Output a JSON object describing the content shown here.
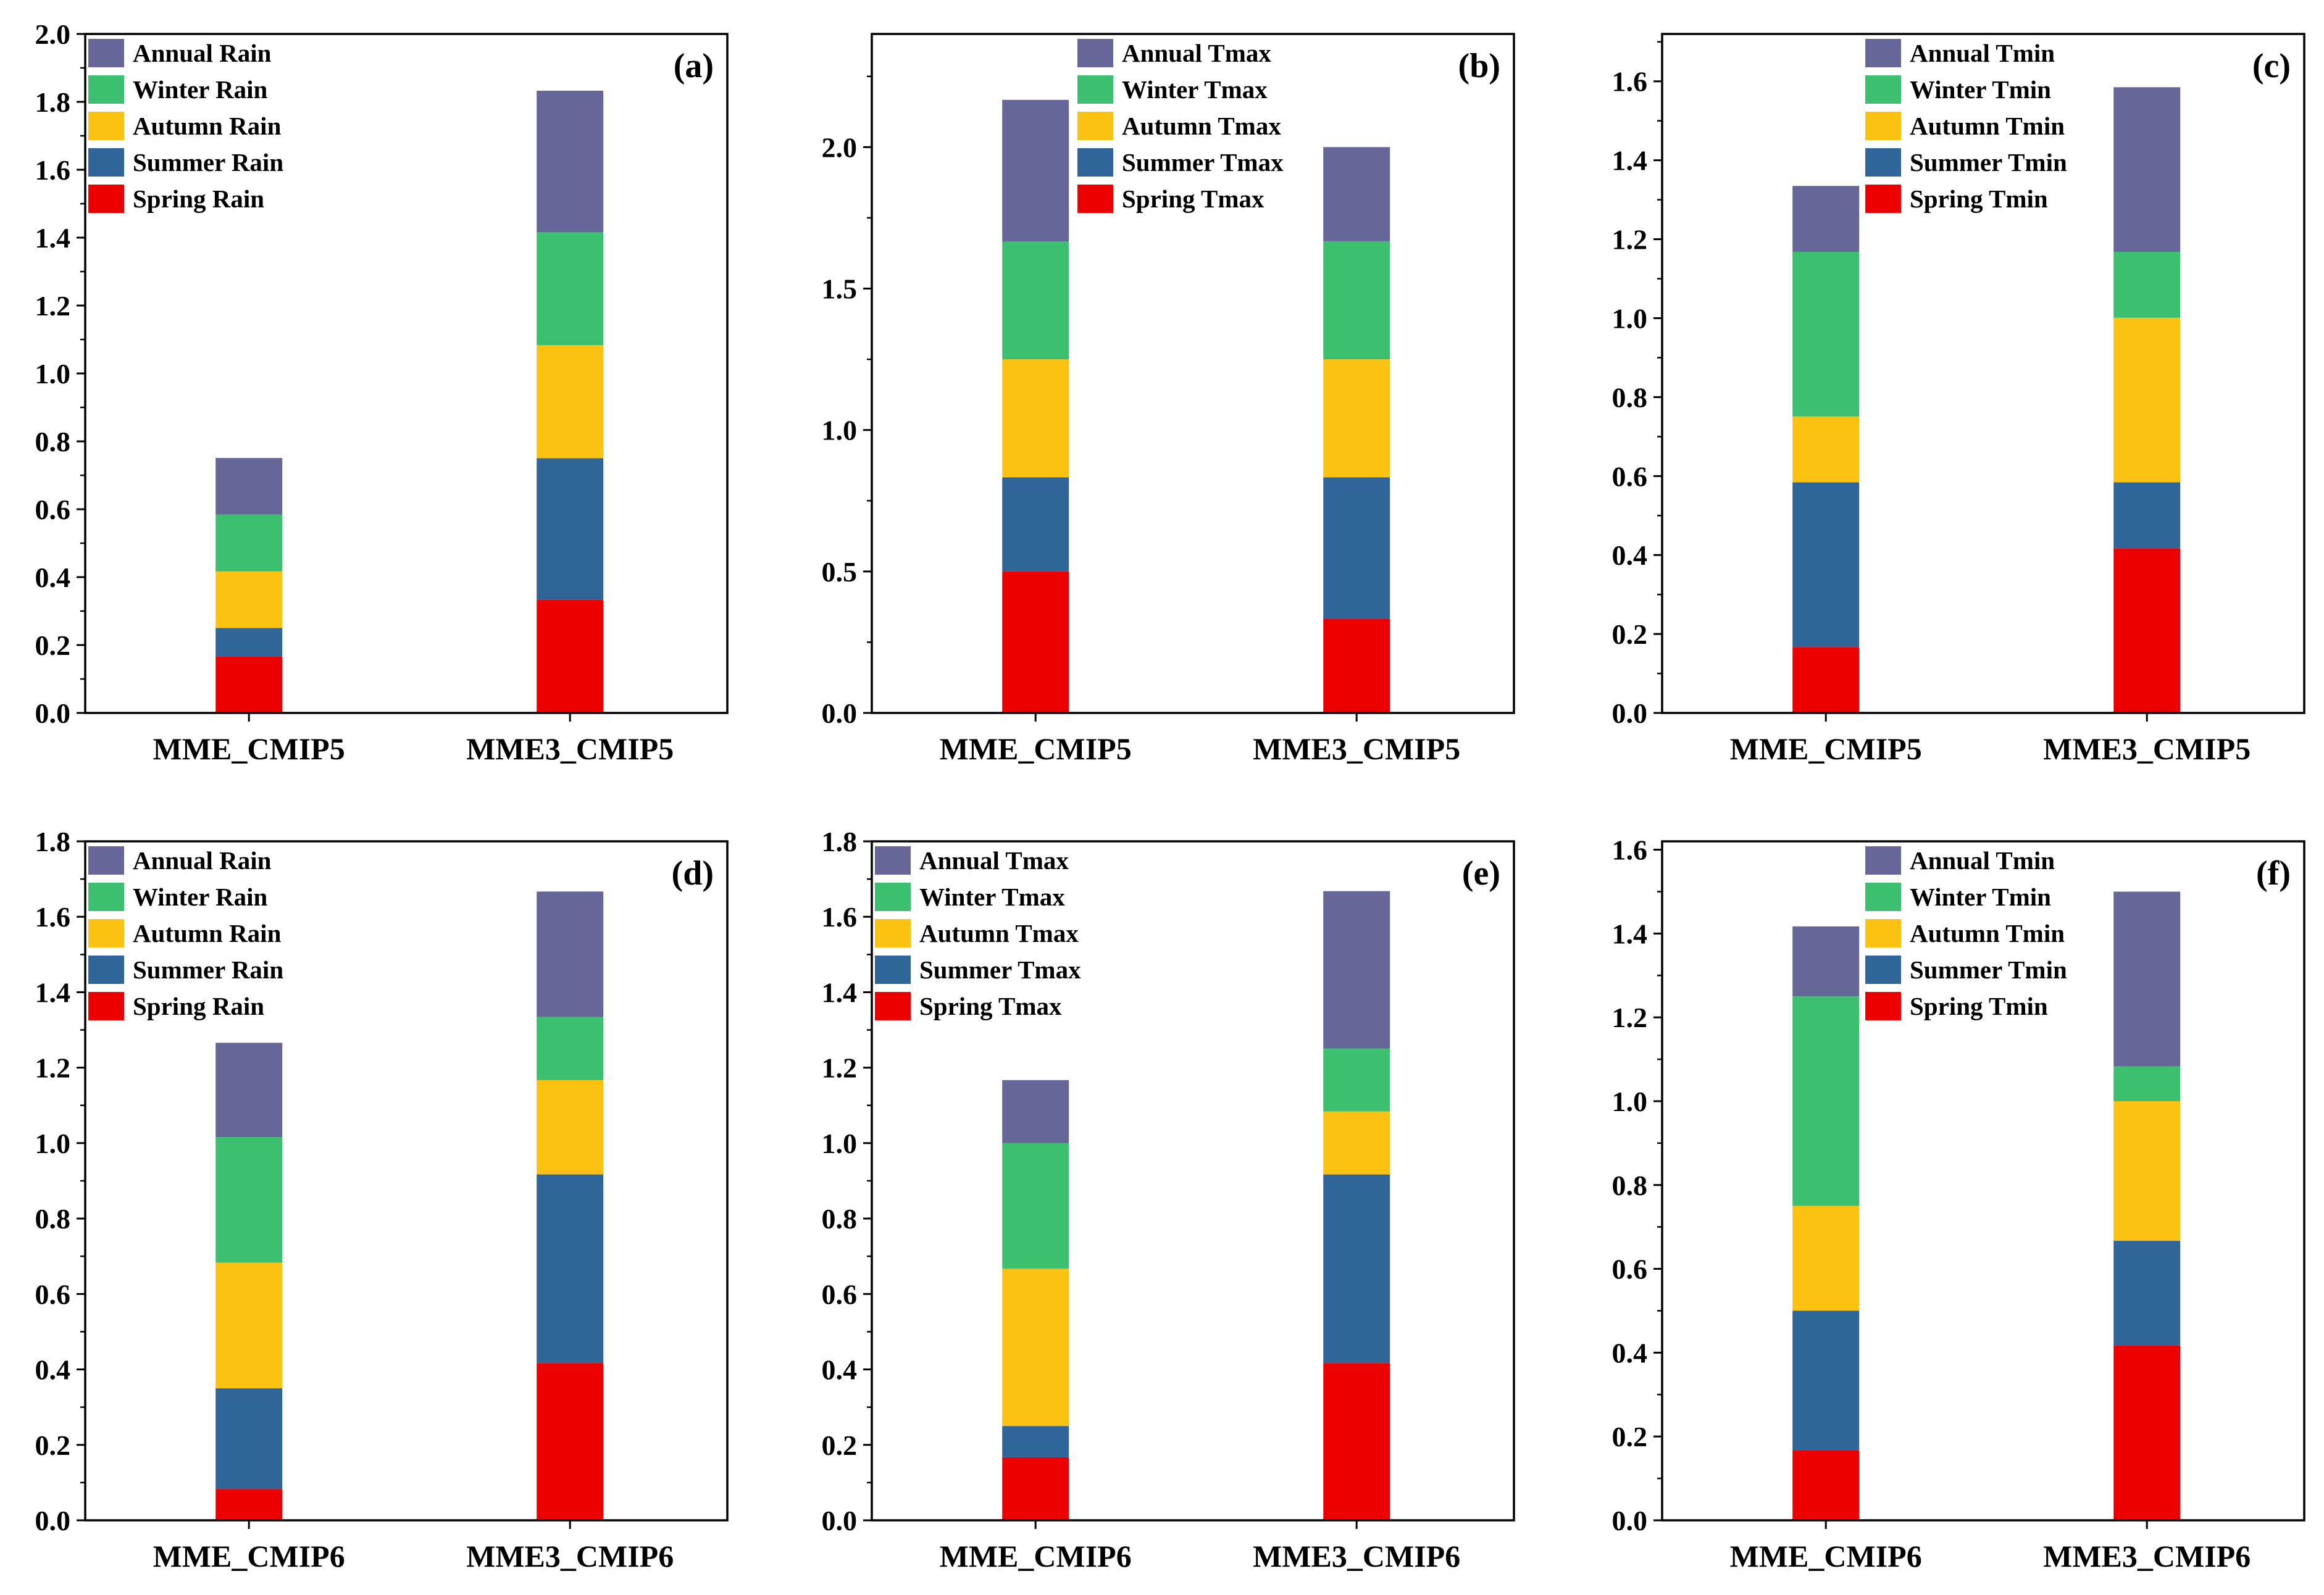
{
  "colors": {
    "Spring": "#ed0000",
    "Summer": "#2f6599",
    "Autumn": "#fbc211",
    "Winter": "#3cc070",
    "Annual": "#666699"
  },
  "chart_data": [
    {
      "type": "bar",
      "stacked": true,
      "panel": "(a)",
      "categories": [
        "MME_CMIP5",
        "MME3_CMIP5"
      ],
      "ylim": [
        0,
        2.0
      ],
      "yticks": [
        "0.0",
        "0.2",
        "0.4",
        "0.6",
        "0.8",
        "1.0",
        "1.2",
        "1.4",
        "1.6",
        "1.8",
        "2.0"
      ],
      "legend_position": "top-left",
      "series": [
        {
          "name": "Spring Rain",
          "season": "Spring",
          "values": [
            0.167,
            0.333
          ]
        },
        {
          "name": "Summer Rain",
          "season": "Summer",
          "values": [
            0.083,
            0.417
          ]
        },
        {
          "name": "Autumn Rain",
          "season": "Autumn",
          "values": [
            0.167,
            0.333
          ]
        },
        {
          "name": "Winter Rain",
          "season": "Winter",
          "values": [
            0.167,
            0.333
          ]
        },
        {
          "name": "Annual Rain",
          "season": "Annual",
          "values": [
            0.167,
            0.417
          ]
        }
      ]
    },
    {
      "type": "bar",
      "stacked": true,
      "panel": "(b)",
      "categories": [
        "MME_CMIP5",
        "MME3_CMIP5"
      ],
      "ylim": [
        0,
        2.4
      ],
      "yticks": [
        "0.0",
        "0.5",
        "1.0",
        "1.5",
        "2.0"
      ],
      "legend_position": "top-center",
      "series": [
        {
          "name": "Spring Tmax",
          "season": "Spring",
          "values": [
            0.5,
            0.333
          ]
        },
        {
          "name": "Summer Tmax",
          "season": "Summer",
          "values": [
            0.333,
            0.5
          ]
        },
        {
          "name": "Autumn Tmax",
          "season": "Autumn",
          "values": [
            0.417,
            0.417
          ]
        },
        {
          "name": "Winter Tmax",
          "season": "Winter",
          "values": [
            0.417,
            0.417
          ]
        },
        {
          "name": "Annual Tmax",
          "season": "Annual",
          "values": [
            0.5,
            0.333
          ]
        }
      ]
    },
    {
      "type": "bar",
      "stacked": true,
      "panel": "(c)",
      "categories": [
        "MME_CMIP5",
        "MME3_CMIP5"
      ],
      "ylim": [
        0,
        1.72
      ],
      "yticks": [
        "0.0",
        "0.2",
        "0.4",
        "0.6",
        "0.8",
        "1.0",
        "1.2",
        "1.4",
        "1.6"
      ],
      "legend_position": "top-center",
      "series": [
        {
          "name": "Spring Tmin",
          "season": "Spring",
          "values": [
            0.167,
            0.417
          ]
        },
        {
          "name": "Summer Tmin",
          "season": "Summer",
          "values": [
            0.417,
            0.167
          ]
        },
        {
          "name": "Autumn Tmin",
          "season": "Autumn",
          "values": [
            0.167,
            0.417
          ]
        },
        {
          "name": "Winter Tmin",
          "season": "Winter",
          "values": [
            0.417,
            0.167
          ]
        },
        {
          "name": "Annual Tmin",
          "season": "Annual",
          "values": [
            0.167,
            0.417
          ]
        }
      ]
    },
    {
      "type": "bar",
      "stacked": true,
      "panel": "(d)",
      "categories": [
        "MME_CMIP6",
        "MME3_CMIP6"
      ],
      "ylim": [
        0,
        1.8
      ],
      "yticks": [
        "0.0",
        "0.2",
        "0.4",
        "0.6",
        "0.8",
        "1.0",
        "1.2",
        "1.4",
        "1.6",
        "1.8"
      ],
      "legend_position": "top-left",
      "series": [
        {
          "name": "Spring Rain",
          "season": "Spring",
          "values": [
            0.083,
            0.417
          ]
        },
        {
          "name": "Summer Rain",
          "season": "Summer",
          "values": [
            0.267,
            0.5
          ]
        },
        {
          "name": "Autumn Rain",
          "season": "Autumn",
          "values": [
            0.333,
            0.25
          ]
        },
        {
          "name": "Winter Rain",
          "season": "Winter",
          "values": [
            0.333,
            0.167
          ]
        },
        {
          "name": "Annual Rain",
          "season": "Annual",
          "values": [
            0.25,
            0.333
          ]
        }
      ]
    },
    {
      "type": "bar",
      "stacked": true,
      "panel": "(e)",
      "categories": [
        "MME_CMIP6",
        "MME3_CMIP6"
      ],
      "ylim": [
        0,
        1.8
      ],
      "yticks": [
        "0.0",
        "0.2",
        "0.4",
        "0.6",
        "0.8",
        "1.0",
        "1.2",
        "1.4",
        "1.6",
        "1.8"
      ],
      "legend_position": "top-left",
      "series": [
        {
          "name": "Spring Tmax",
          "season": "Spring",
          "values": [
            0.167,
            0.417
          ]
        },
        {
          "name": "Summer Tmax",
          "season": "Summer",
          "values": [
            0.083,
            0.5
          ]
        },
        {
          "name": "Autumn Tmax",
          "season": "Autumn",
          "values": [
            0.417,
            0.167
          ]
        },
        {
          "name": "Winter Tmax",
          "season": "Winter",
          "values": [
            0.333,
            0.167
          ]
        },
        {
          "name": "Annual Tmax",
          "season": "Annual",
          "values": [
            0.167,
            0.417
          ]
        }
      ]
    },
    {
      "type": "bar",
      "stacked": true,
      "panel": "(f)",
      "categories": [
        "MME_CMIP6",
        "MME3_CMIP6"
      ],
      "ylim": [
        0,
        1.62
      ],
      "yticks": [
        "0.0",
        "0.2",
        "0.4",
        "0.6",
        "0.8",
        "1.0",
        "1.2",
        "1.4",
        "1.6"
      ],
      "legend_position": "top-center",
      "series": [
        {
          "name": "Spring Tmin",
          "season": "Spring",
          "values": [
            0.167,
            0.417
          ]
        },
        {
          "name": "Summer Tmin",
          "season": "Summer",
          "values": [
            0.333,
            0.25
          ]
        },
        {
          "name": "Autumn Tmin",
          "season": "Autumn",
          "values": [
            0.25,
            0.333
          ]
        },
        {
          "name": "Winter Tmin",
          "season": "Winter",
          "values": [
            0.5,
            0.083
          ]
        },
        {
          "name": "Annual Tmin",
          "season": "Annual",
          "values": [
            0.167,
            0.417
          ]
        }
      ]
    }
  ]
}
